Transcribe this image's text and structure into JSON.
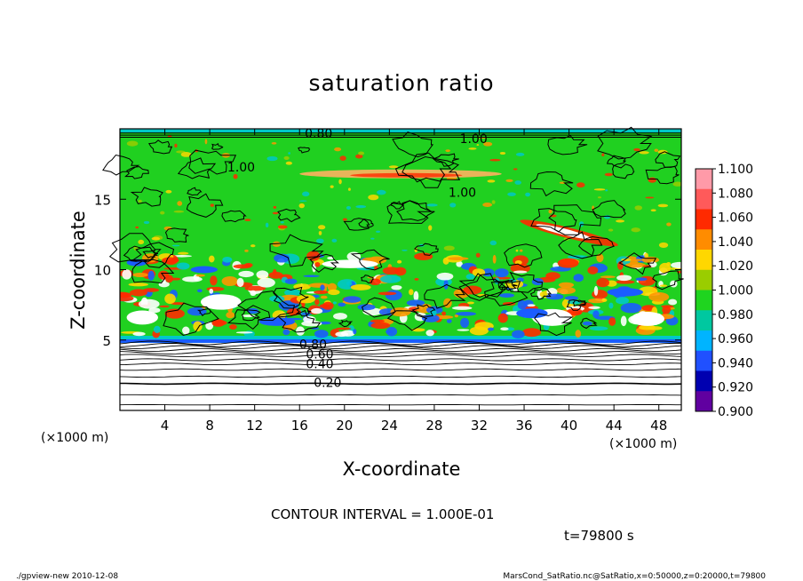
{
  "chart_data": {
    "type": "heatmap",
    "title": "saturation ratio",
    "xlabel": "X-coordinate",
    "ylabel": "Z-coordinate",
    "x_unit": "(×1000 m)",
    "y_unit": "(×1000 m)",
    "xlim": [
      0,
      50
    ],
    "ylim": [
      0,
      20
    ],
    "x_ticks": [
      4,
      8,
      12,
      16,
      20,
      24,
      28,
      32,
      36,
      40,
      44,
      48
    ],
    "y_ticks": [
      5,
      10,
      15
    ],
    "colorbar": {
      "ticks": [
        "1.100",
        "1.080",
        "1.060",
        "1.040",
        "1.020",
        "1.000",
        "0.980",
        "0.960",
        "0.940",
        "0.920",
        "0.900"
      ],
      "colors": [
        "#ff9aa8",
        "#ff5a5a",
        "#ff2a00",
        "#ff8c00",
        "#ffd700",
        "#9acd00",
        "#1fd41f",
        "#00c8a0",
        "#00b4ff",
        "#2050ff",
        "#0000b0",
        "#6000a0"
      ]
    },
    "contour_labels": [
      {
        "text": "0.20",
        "x": 18.5,
        "z": 2.0
      },
      {
        "text": "0.40",
        "x": 17.8,
        "z": 3.3
      },
      {
        "text": "0.60",
        "x": 17.8,
        "z": 4.0
      },
      {
        "text": "0.80",
        "x": 17.2,
        "z": 4.7
      },
      {
        "text": "1.00",
        "x": 10.8,
        "z": 17.3
      },
      {
        "text": "1.00",
        "x": 30.5,
        "z": 15.5
      },
      {
        "text": "1.00",
        "x": 31.5,
        "z": 19.3
      },
      {
        "text": "0.80",
        "x": 17.7,
        "z": 19.7
      }
    ],
    "contour_interval_text": "CONTOUR INTERVAL = 1.000E-01",
    "time_text": "t=79800 s"
  },
  "footer": {
    "left": "./gpview-new   2010-12-08",
    "right": "MarsCond_SatRatio.nc@SatRatio,x=0:50000,z=0:20000,t=79800"
  },
  "colors": {
    "green": "#20d020",
    "cyan": "#00c8c8",
    "blue": "#1a5cff",
    "red": "#ff2a00",
    "orange": "#ff9600",
    "white": "#ffffff"
  }
}
